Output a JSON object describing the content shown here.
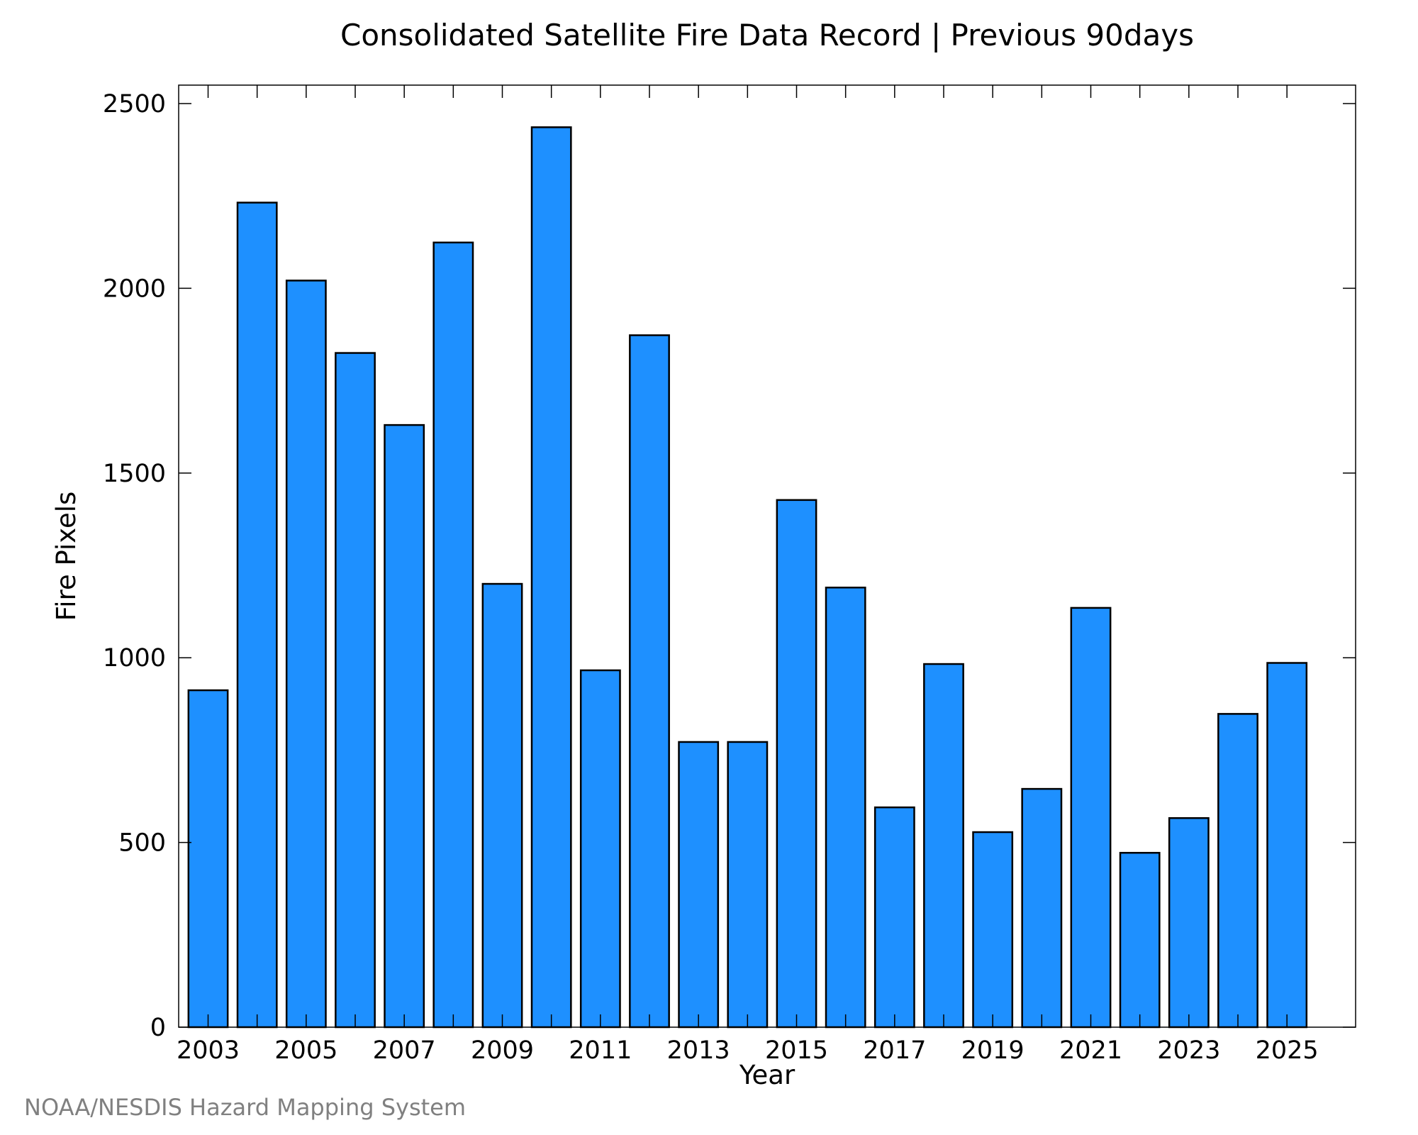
{
  "chart_data": {
    "type": "bar",
    "title": "Consolidated Satellite Fire Data Record | Previous 90days",
    "xlabel": "Year",
    "ylabel": "Fire Pixels",
    "categories": [
      2003,
      2004,
      2005,
      2006,
      2007,
      2008,
      2009,
      2010,
      2011,
      2012,
      2013,
      2014,
      2015,
      2016,
      2017,
      2018,
      2019,
      2020,
      2021,
      2022,
      2023,
      2024,
      2025
    ],
    "values": [
      912,
      2232,
      2021,
      1825,
      1630,
      2124,
      1200,
      2436,
      966,
      1873,
      772,
      772,
      1427,
      1190,
      595,
      983,
      528,
      645,
      1135,
      472,
      566,
      848,
      986
    ],
    "ylim": [
      0,
      2550
    ],
    "yticks": [
      0,
      500,
      1000,
      1500,
      2000,
      2500
    ],
    "xticks": [
      2003,
      2005,
      2007,
      2009,
      2011,
      2013,
      2015,
      2017,
      2019,
      2021,
      2023,
      2025
    ],
    "xlim": [
      2002.4,
      2026.4
    ],
    "grid": false,
    "bar_color": "#1E90FF",
    "bar_edge_color": "#000000"
  },
  "credit": "NOAA/NESDIS Hazard Mapping System"
}
